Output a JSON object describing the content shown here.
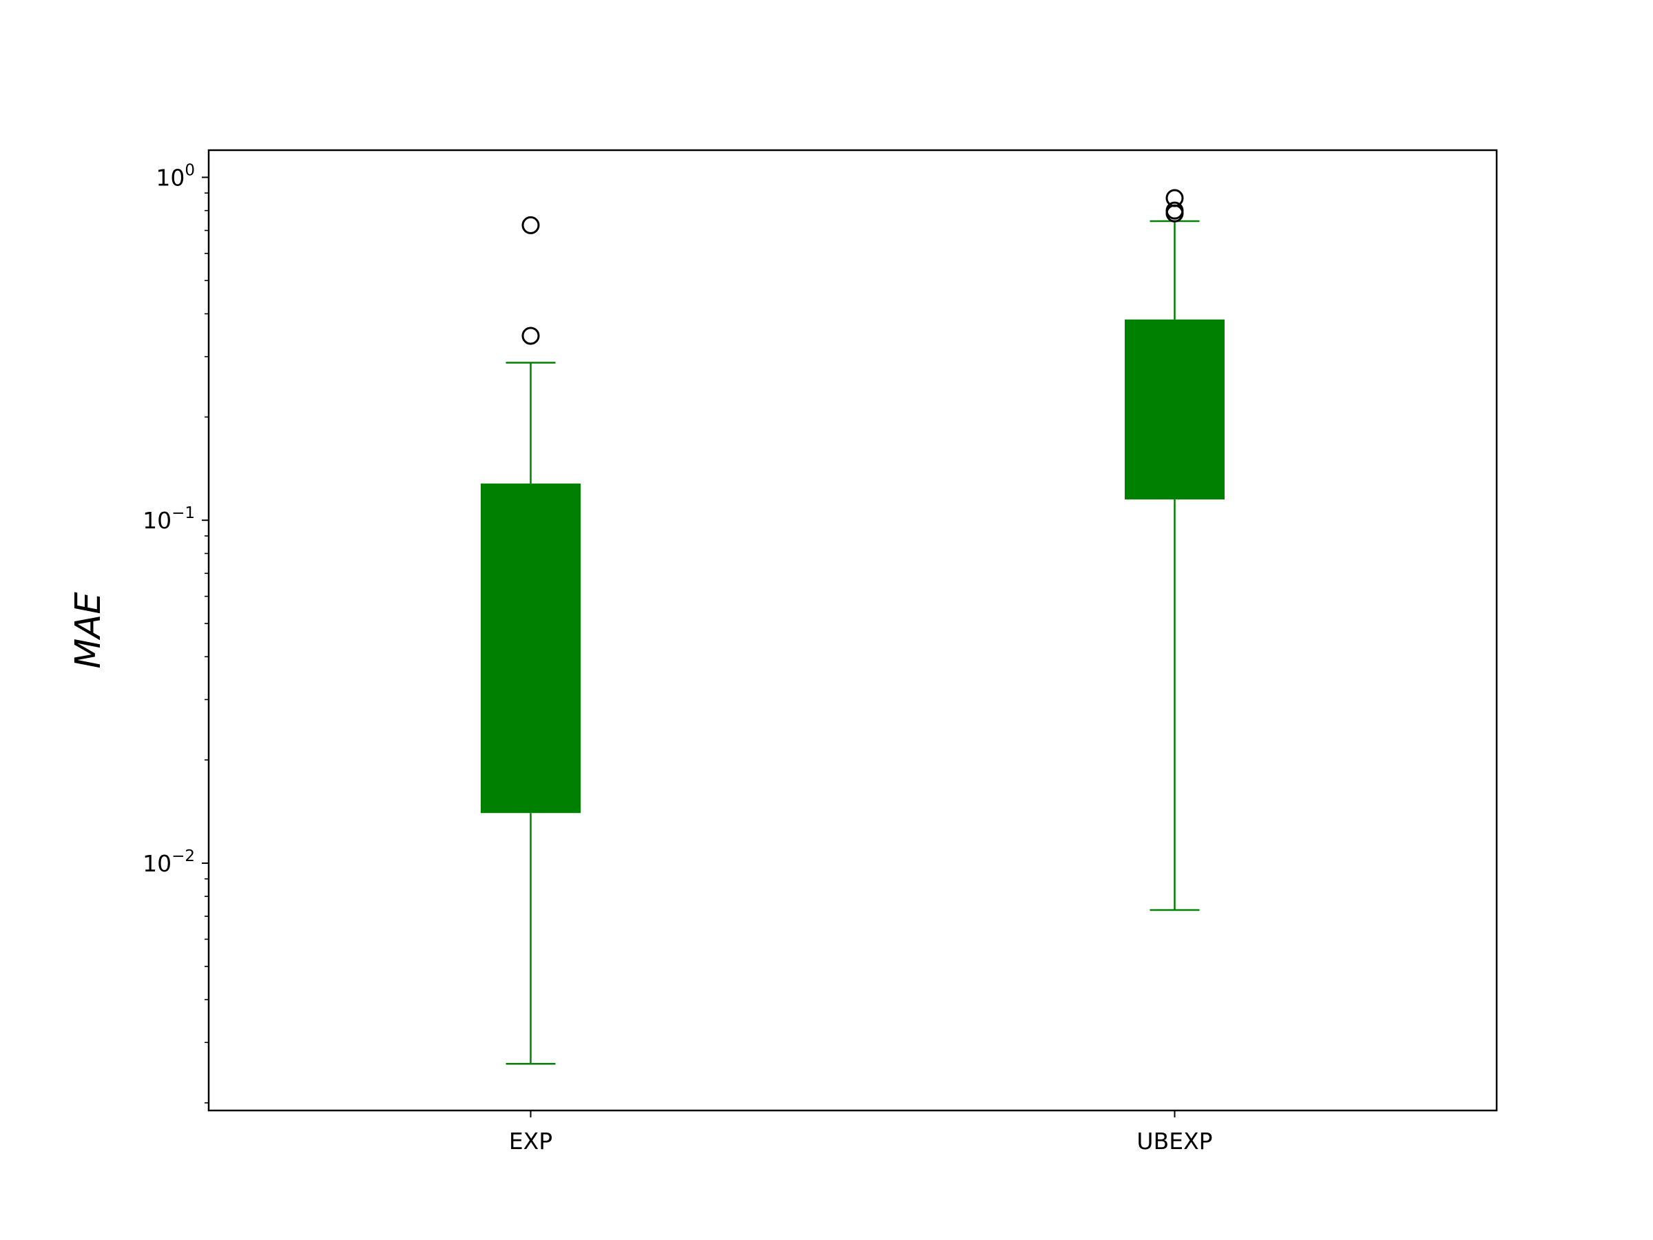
{
  "chart_data": {
    "type": "box",
    "title": "",
    "xlabel": "",
    "ylabel": "MAE",
    "yscale": "log",
    "ylim": [
      0.0019,
      1.2
    ],
    "y_ticks": [
      {
        "value": 1,
        "base": "10",
        "exp": "0"
      },
      {
        "value": 0.1,
        "base": "10",
        "exp": "−1"
      },
      {
        "value": 0.01,
        "base": "10",
        "exp": "−2"
      }
    ],
    "categories": [
      "EXP",
      "UBEXP"
    ],
    "boxes": [
      {
        "name": "EXP",
        "whisker_low": 0.0026,
        "q1": 0.014,
        "median": null,
        "q3": 0.128,
        "whisker_high": 0.288,
        "outliers": [
          0.345,
          0.725
        ]
      },
      {
        "name": "UBEXP",
        "whisker_low": 0.0073,
        "q1": 0.115,
        "median": null,
        "q3": 0.385,
        "whisker_high": 0.745,
        "outliers": [
          0.785,
          0.8,
          0.87
        ]
      }
    ],
    "grid": false,
    "legend": null,
    "colors": {
      "box": "#008000",
      "whisker": "#008000",
      "outlier_edge": "#000000",
      "axes": "#000000"
    }
  }
}
